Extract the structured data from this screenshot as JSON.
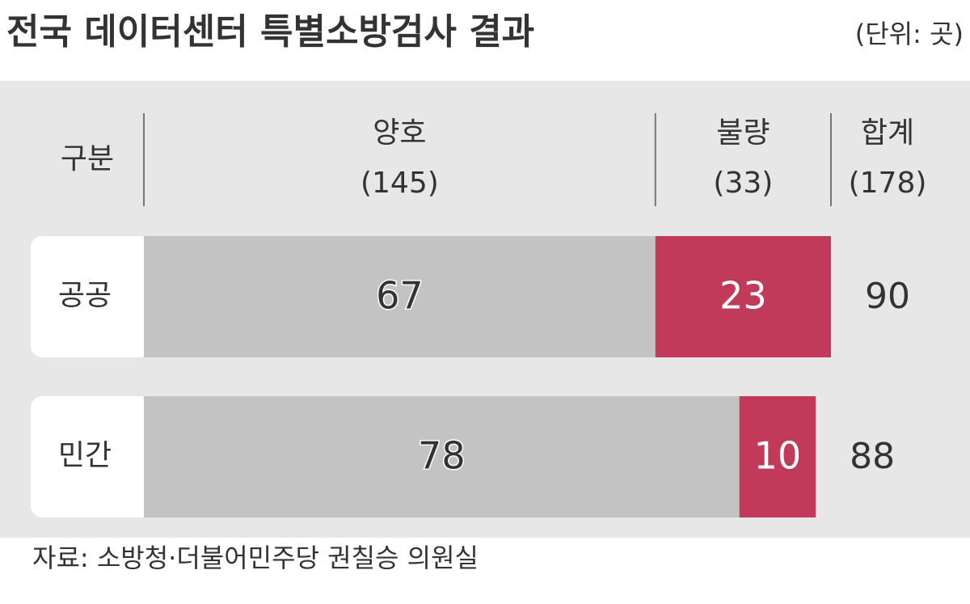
{
  "chart_data": {
    "type": "stacked-hbar",
    "title": "전국 데이터센터 특별소방검사 결과",
    "subtitle": "(단위: 곳)",
    "category_header": "구분",
    "categories": [
      "공공",
      "민간"
    ],
    "series": [
      {
        "name": "양호",
        "total_label": "(145)",
        "color": "#c3c3c3",
        "text_color": "#333333",
        "values": [
          67,
          78
        ]
      },
      {
        "name": "불량",
        "total_label": "(33)",
        "color": "#c13a5a",
        "text_color": "#ffffff",
        "values": [
          23,
          10
        ]
      }
    ],
    "totals_header": "합계",
    "totals_header_label": "(178)",
    "totals": [
      90,
      88
    ],
    "xlim": [
      0,
      90
    ],
    "source": "자료: 소방청·더불어민주당 권칠승 의원실"
  }
}
